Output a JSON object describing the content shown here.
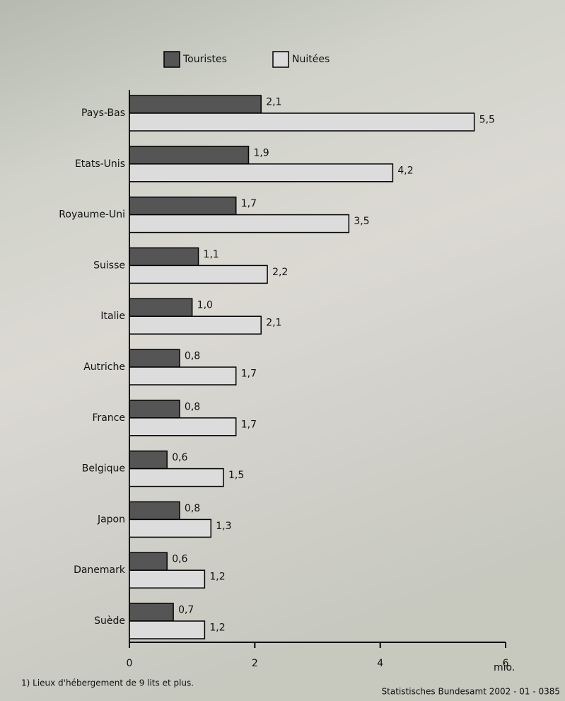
{
  "chart_data": {
    "type": "bar",
    "orientation": "horizontal",
    "categories": [
      "Pays-Bas",
      "Etats-Unis",
      "Royaume-Uni",
      "Suisse",
      "Italie",
      "Autriche",
      "France",
      "Belgique",
      "Japon",
      "Danemark",
      "Suède"
    ],
    "series": [
      {
        "name": "Touristes",
        "color": "#555555",
        "values": [
          2.1,
          1.9,
          1.7,
          1.1,
          1.0,
          0.8,
          0.8,
          0.6,
          0.8,
          0.6,
          0.7
        ],
        "value_labels": [
          "2,1",
          "1,9",
          "1,7",
          "1,1",
          "1,0",
          "0,8",
          "0,8",
          "0,6",
          "0,8",
          "0,6",
          "0,7"
        ]
      },
      {
        "name": "Nuitées",
        "color": "#dcdcdc",
        "values": [
          5.5,
          4.2,
          3.5,
          2.2,
          2.1,
          1.7,
          1.7,
          1.5,
          1.3,
          1.2,
          1.2
        ],
        "value_labels": [
          "5,5",
          "4,2",
          "3,5",
          "2,2",
          "2,1",
          "1,7",
          "1,7",
          "1,5",
          "1,3",
          "1,2",
          "1,2"
        ]
      }
    ],
    "xlim": [
      0,
      6
    ],
    "xticks": [
      0,
      2,
      4,
      6
    ],
    "x_unit": "mio.",
    "footnote": "1) Lieux d'hébergement de 9 lits et plus.",
    "source": "Statistisches Bundesamt 2002 - 01 - 0385"
  }
}
